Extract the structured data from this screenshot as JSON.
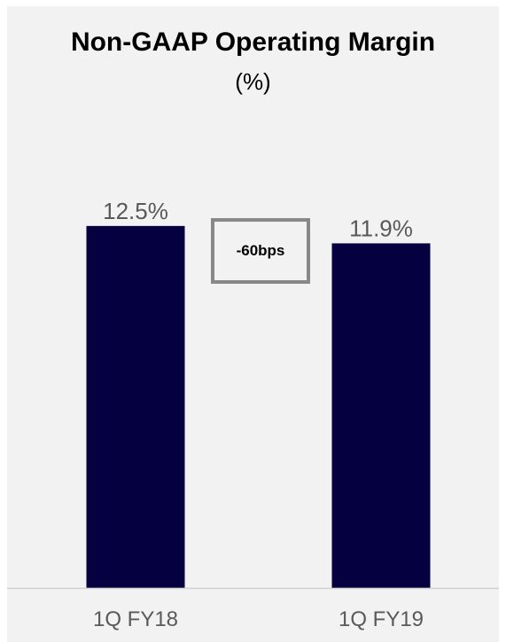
{
  "colors": {
    "bar": "#05003f",
    "background": "#f2f2f2",
    "axis": "#d0d0d0",
    "label": "#595959",
    "box_border": "#888888"
  },
  "chart_data": {
    "type": "bar",
    "title": "Non-GAAP Operating Margin",
    "subtitle": "(%)",
    "categories": [
      "1Q FY18",
      "1Q FY19"
    ],
    "values": [
      12.5,
      11.9
    ],
    "data_labels": [
      "12.5%",
      "11.9%"
    ],
    "ylim": [
      0,
      14.7
    ],
    "grid": false,
    "legend": "none",
    "annotation": "-60bps"
  }
}
